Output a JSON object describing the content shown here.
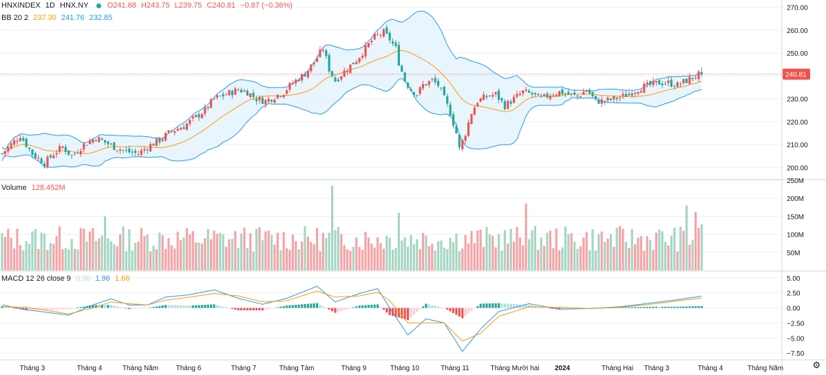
{
  "header": {
    "symbol": "HNXINDEX",
    "interval": "1D",
    "exchange": "HNX.NY",
    "open": "O241.68",
    "high": "H243.75",
    "low": "L239.75",
    "close": "C240.81",
    "change": "−0.87 (−0.36%)",
    "last_price_tag": "240.81"
  },
  "bb_legend": {
    "label": "BB 20 2",
    "basis": "237.30",
    "upper": "241.76",
    "lower": "232.85"
  },
  "volume_legend": {
    "label": "Volume",
    "value": "128.452M"
  },
  "macd_legend": {
    "label": "MACD 12 26 close 9",
    "hist": "0.30",
    "macd": "1.96",
    "signal": "1.66"
  },
  "colors": {
    "up": "#ef5350",
    "down": "#26a69a",
    "vol_up": "#f4a4a6",
    "vol_down": "#a5d6c3",
    "bb_band": "#2196f3",
    "bb_basis": "#ff9800",
    "bb_fill": "#e3f2fd",
    "macd": "#2196f3",
    "signal": "#ff9800",
    "hist_pos_strong": "#26a69a",
    "hist_pos_weak": "#b2dfdb",
    "hist_neg_strong": "#ef5350",
    "hist_neg_weak": "#ffcdd2",
    "grid": "#eceff3",
    "text": "#131722"
  },
  "chart_data": [
    {
      "type": "candlestick",
      "title": "HNXINDEX 1D HNX.NY",
      "x_labels": [
        "Tháng 3",
        "Tháng 4",
        "Tháng Năm",
        "Tháng 6",
        "Tháng 7",
        "Tháng Tám",
        "Tháng 9",
        "Tháng 10",
        "Tháng 11",
        "Tháng Mười hai",
        "2024",
        "Tháng Hai",
        "Tháng 3",
        "Tháng 4",
        "Tháng Năm"
      ],
      "y_ticks": [
        "200.00",
        "210.00",
        "220.00",
        "230.00",
        "240.00",
        "250.00",
        "260.00",
        "270.00"
      ],
      "ylim": [
        195,
        272
      ],
      "last_price": 240.81,
      "close_path": [
        [
          0,
          206
        ],
        [
          6,
          214
        ],
        [
          10,
          206
        ],
        [
          14,
          202
        ],
        [
          17,
          206
        ],
        [
          20,
          209
        ],
        [
          23,
          205
        ],
        [
          27,
          210
        ],
        [
          31,
          213
        ],
        [
          34,
          211
        ],
        [
          37,
          209
        ],
        [
          41,
          207
        ],
        [
          45,
          206
        ],
        [
          48,
          209
        ],
        [
          52,
          212
        ],
        [
          56,
          216
        ],
        [
          60,
          218
        ],
        [
          63,
          221
        ],
        [
          67,
          225
        ],
        [
          70,
          230
        ],
        [
          74,
          232
        ],
        [
          78,
          234
        ],
        [
          81,
          233
        ],
        [
          84,
          230
        ],
        [
          87,
          229
        ],
        [
          90,
          231
        ],
        [
          93,
          233
        ],
        [
          96,
          237
        ],
        [
          100,
          241
        ],
        [
          103,
          246
        ],
        [
          106,
          252
        ],
        [
          108,
          243
        ],
        [
          110,
          238
        ],
        [
          113,
          242
        ],
        [
          117,
          247
        ],
        [
          120,
          252
        ],
        [
          123,
          257
        ],
        [
          126,
          259
        ],
        [
          128,
          256
        ],
        [
          130,
          252
        ],
        [
          131,
          246
        ],
        [
          133,
          238
        ],
        [
          135,
          234
        ],
        [
          137,
          232
        ],
        [
          139,
          236
        ],
        [
          142,
          238
        ],
        [
          144,
          236
        ],
        [
          146,
          230
        ],
        [
          148,
          224
        ],
        [
          150,
          215
        ],
        [
          151,
          208
        ],
        [
          153,
          215
        ],
        [
          155,
          224
        ],
        [
          157,
          229
        ],
        [
          160,
          231
        ],
        [
          163,
          232
        ],
        [
          166,
          227
        ],
        [
          169,
          230
        ],
        [
          172,
          233
        ],
        [
          175,
          232
        ],
        [
          178,
          230
        ],
        [
          181,
          232
        ],
        [
          184,
          233
        ],
        [
          187,
          232
        ],
        [
          190,
          231
        ],
        [
          193,
          234
        ],
        [
          196,
          229
        ],
        [
          199,
          229
        ],
        [
          202,
          230
        ],
        [
          205,
          231
        ],
        [
          208,
          233
        ],
        [
          211,
          235
        ],
        [
          214,
          236
        ],
        [
          217,
          237
        ],
        [
          220,
          237
        ],
        [
          223,
          236
        ],
        [
          226,
          238
        ],
        [
          229,
          240
        ],
        [
          231,
          241
        ]
      ]
    },
    {
      "type": "bar",
      "title": "Volume",
      "y_ticks": [
        "50M",
        "100M",
        "150M",
        "200M",
        "250M"
      ],
      "ylim": [
        0,
        250
      ],
      "value_unit": "M",
      "avg_level": 95,
      "spikes": [
        {
          "bar": 34,
          "value": 150
        },
        {
          "bar": 109,
          "value": 235
        },
        {
          "bar": 131,
          "value": 160
        },
        {
          "bar": 173,
          "value": 185
        },
        {
          "bar": 226,
          "value": 180
        },
        {
          "bar": 229,
          "value": 162
        },
        {
          "bar": 231,
          "value": 128
        }
      ]
    },
    {
      "type": "line",
      "title": "MACD 12 26 close 9",
      "y_ticks": [
        "−7.50",
        "−5.00",
        "−2.50",
        "0.00",
        "2.50",
        "5.00"
      ],
      "ylim": [
        -8.5,
        6
      ],
      "series": [
        {
          "name": "MACD",
          "values": [
            [
              0,
              0.5
            ],
            [
              8,
              -0.3
            ],
            [
              16,
              -0.8
            ],
            [
              22,
              -1.2
            ],
            [
              30,
              0.5
            ],
            [
              36,
              1.5
            ],
            [
              42,
              0.5
            ],
            [
              48,
              0.5
            ],
            [
              54,
              1.8
            ],
            [
              62,
              2.2
            ],
            [
              70,
              3.0
            ],
            [
              78,
              1.6
            ],
            [
              86,
              0.6
            ],
            [
              94,
              1.6
            ],
            [
              104,
              3.6
            ],
            [
              110,
              1.0
            ],
            [
              118,
              2.4
            ],
            [
              124,
              3.2
            ],
            [
              128,
              0.0
            ],
            [
              134,
              -4.5
            ],
            [
              140,
              -1.8
            ],
            [
              146,
              -2.5
            ],
            [
              152,
              -7.2
            ],
            [
              158,
              -3.5
            ],
            [
              164,
              -0.6
            ],
            [
              174,
              0.7
            ],
            [
              184,
              -0.2
            ],
            [
              194,
              -0.1
            ],
            [
              204,
              0.2
            ],
            [
              214,
              0.8
            ],
            [
              222,
              1.3
            ],
            [
              231,
              1.96
            ]
          ]
        },
        {
          "name": "Signal",
          "values": [
            [
              0,
              0.2
            ],
            [
              8,
              0.1
            ],
            [
              16,
              -0.5
            ],
            [
              22,
              -1.0
            ],
            [
              30,
              0.0
            ],
            [
              36,
              1.0
            ],
            [
              42,
              0.7
            ],
            [
              48,
              0.5
            ],
            [
              54,
              1.3
            ],
            [
              62,
              1.8
            ],
            [
              70,
              2.4
            ],
            [
              78,
              2.0
            ],
            [
              86,
              1.0
            ],
            [
              94,
              1.2
            ],
            [
              104,
              2.8
            ],
            [
              110,
              1.8
            ],
            [
              118,
              2.0
            ],
            [
              124,
              2.6
            ],
            [
              128,
              1.2
            ],
            [
              134,
              -2.5
            ],
            [
              140,
              -2.5
            ],
            [
              146,
              -2.5
            ],
            [
              152,
              -5.5
            ],
            [
              158,
              -4.2
            ],
            [
              164,
              -1.4
            ],
            [
              174,
              0.2
            ],
            [
              184,
              0.1
            ],
            [
              194,
              -0.1
            ],
            [
              204,
              0.1
            ],
            [
              214,
              0.6
            ],
            [
              222,
              1.1
            ],
            [
              231,
              1.66
            ]
          ]
        }
      ]
    }
  ]
}
